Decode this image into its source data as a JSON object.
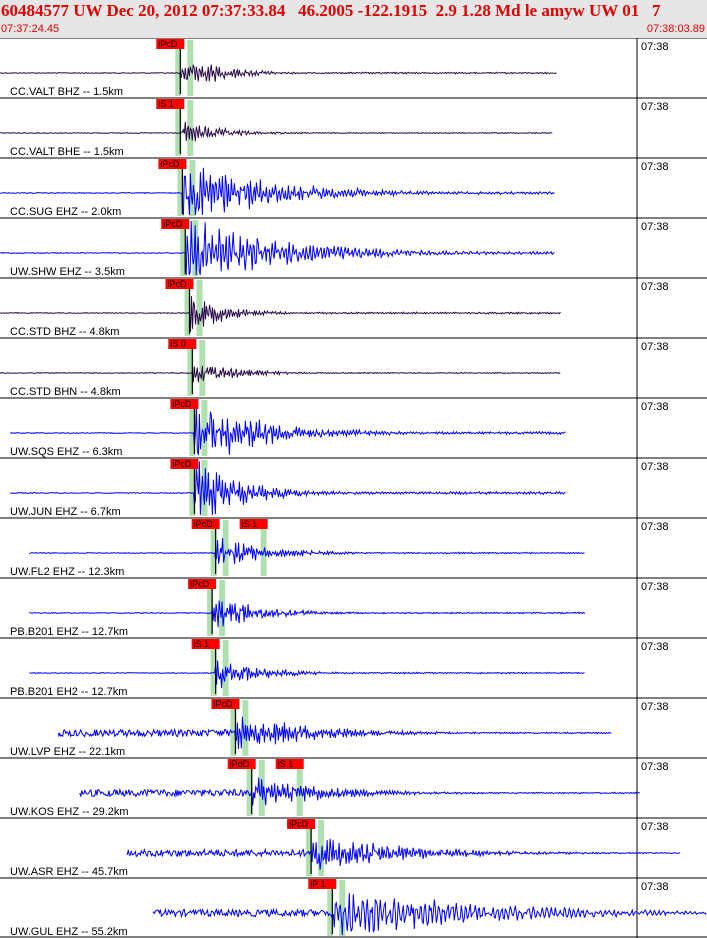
{
  "header": {
    "title": "60484577 UW Dec 20, 2012 07:37:33.84   46.2005 -122.1915  2.9 1.28 Md le amyw UW 01   7",
    "start_time": "07:37:24.45",
    "end_time": "07:38:03.89"
  },
  "chart_data": {
    "type": "line",
    "title": "60484577 UW Dec 20, 2012 07:37:33.84   46.2005 -122.1915  2.9 1.28 Md le amyw UW 01   7",
    "xlabel": "",
    "ylabel": "",
    "x_start": "07:37:24.45",
    "x_end": "07:38:03.89",
    "x_tick": "07:38",
    "colors": {
      "velocity_trace": "#0000ff",
      "accel_trace": "#2a0a4a",
      "pick": "#ff0000",
      "window": "#b0e0b0",
      "coda": "#000000"
    },
    "series": [
      {
        "name": "CC.VALT BHZ -- 1.5km",
        "color": "#2a0a4a",
        "picks": [
          "iPcD"
        ],
        "flat_start": 0.0,
        "onset": 0.255,
        "end": 0.787,
        "amp": 0.9,
        "decay": 3.2,
        "freq": 2.2
      },
      {
        "name": "CC.VALT BHE -- 1.5km",
        "color": "#2a0a4a",
        "picks": [
          "iS 1"
        ],
        "flat_start": 0.0,
        "onset": 0.255,
        "end": 0.782,
        "amp": 0.55,
        "decay": 3.0,
        "freq": 2.2
      },
      {
        "name": "CC.SUG EHZ -- 2.0km",
        "color": "#0000ff",
        "picks": [
          "iPcD"
        ],
        "flat_start": 0.0,
        "onset": 0.258,
        "end": 0.785,
        "amp": 1.6,
        "decay": 1.5,
        "freq": 2.0
      },
      {
        "name": "UW.SHW EHZ -- 3.5km",
        "color": "#0000ff",
        "picks": [
          "iPcD"
        ],
        "flat_start": 0.0,
        "onset": 0.262,
        "end": 0.785,
        "amp": 1.6,
        "decay": 1.3,
        "freq": 1.8
      },
      {
        "name": "CC.STD BHZ -- 4.8km",
        "color": "#2a0a4a",
        "picks": [
          "iPcD"
        ],
        "flat_start": 0.0,
        "onset": 0.268,
        "end": 0.793,
        "amp": 1.0,
        "decay": 3.8,
        "freq": 2.4
      },
      {
        "name": "CC.STD BHN -- 4.8km",
        "color": "#2a0a4a",
        "picks": [
          "iS 0"
        ],
        "flat_start": 0.0,
        "onset": 0.272,
        "end": 0.793,
        "amp": 0.6,
        "decay": 3.0,
        "freq": 2.4
      },
      {
        "name": "UW.SQS EHZ -- 6.3km",
        "color": "#0000ff",
        "picks": [
          "iPcD"
        ],
        "flat_start": 0.015,
        "onset": 0.275,
        "end": 0.8,
        "amp": 1.5,
        "decay": 1.8,
        "freq": 2.2
      },
      {
        "name": "UW.JUN EHZ -- 6.7km",
        "color": "#0000ff",
        "picks": [
          "iPcD"
        ],
        "flat_start": 0.015,
        "onset": 0.275,
        "end": 0.8,
        "amp": 1.5,
        "decay": 2.6,
        "freq": 2.2
      },
      {
        "name": "UW.FL2 EHZ -- 12.3km",
        "color": "#0000ff",
        "picks": [
          "iPcD",
          "iS 1"
        ],
        "flat_start": 0.042,
        "onset": 0.305,
        "end": 0.827,
        "amp": 0.75,
        "decay": 2.5,
        "freq": 2.4
      },
      {
        "name": "PB.B201 EHZ -- 12.7km",
        "color": "#0000ff",
        "picks": [
          "iPcD"
        ],
        "flat_start": 0.042,
        "onset": 0.3,
        "end": 0.828,
        "amp": 0.8,
        "decay": 2.6,
        "freq": 2.4
      },
      {
        "name": "PB.B201 EH2 -- 12.7km",
        "color": "#0000ff",
        "picks": [
          "iS 1"
        ],
        "flat_start": 0.042,
        "onset": 0.305,
        "end": 0.828,
        "amp": 0.75,
        "decay": 2.8,
        "freq": 2.4
      },
      {
        "name": "UW.LVP EHZ -- 22.1km",
        "color": "#0000ff",
        "picks": [
          "iPcD"
        ],
        "flat_start": 0.083,
        "onset": 0.333,
        "end": 0.866,
        "amp": 0.85,
        "decay": 1.6,
        "freq": 2.4
      },
      {
        "name": "UW.KOS EHZ -- 29.2km",
        "color": "#0000ff",
        "picks": [
          "iPdD",
          "iS 1"
        ],
        "flat_start": 0.113,
        "onset": 0.356,
        "end": 0.905,
        "amp": 0.8,
        "decay": 1.8,
        "freq": 2.4
      },
      {
        "name": "UW.ASR EHZ -- 45.7km",
        "color": "#0000ff",
        "picks": [
          "iPcD"
        ],
        "flat_start": 0.18,
        "onset": 0.44,
        "end": 0.962,
        "amp": 0.85,
        "decay": 1.3,
        "freq": 2.2
      },
      {
        "name": "UW.GUL EHZ -- 55.2km",
        "color": "#0000ff",
        "picks": [
          "iP 1"
        ],
        "flat_start": 0.217,
        "onset": 0.47,
        "end": 1.0,
        "amp": 1.2,
        "decay": 0.9,
        "freq": 1.4
      }
    ]
  }
}
